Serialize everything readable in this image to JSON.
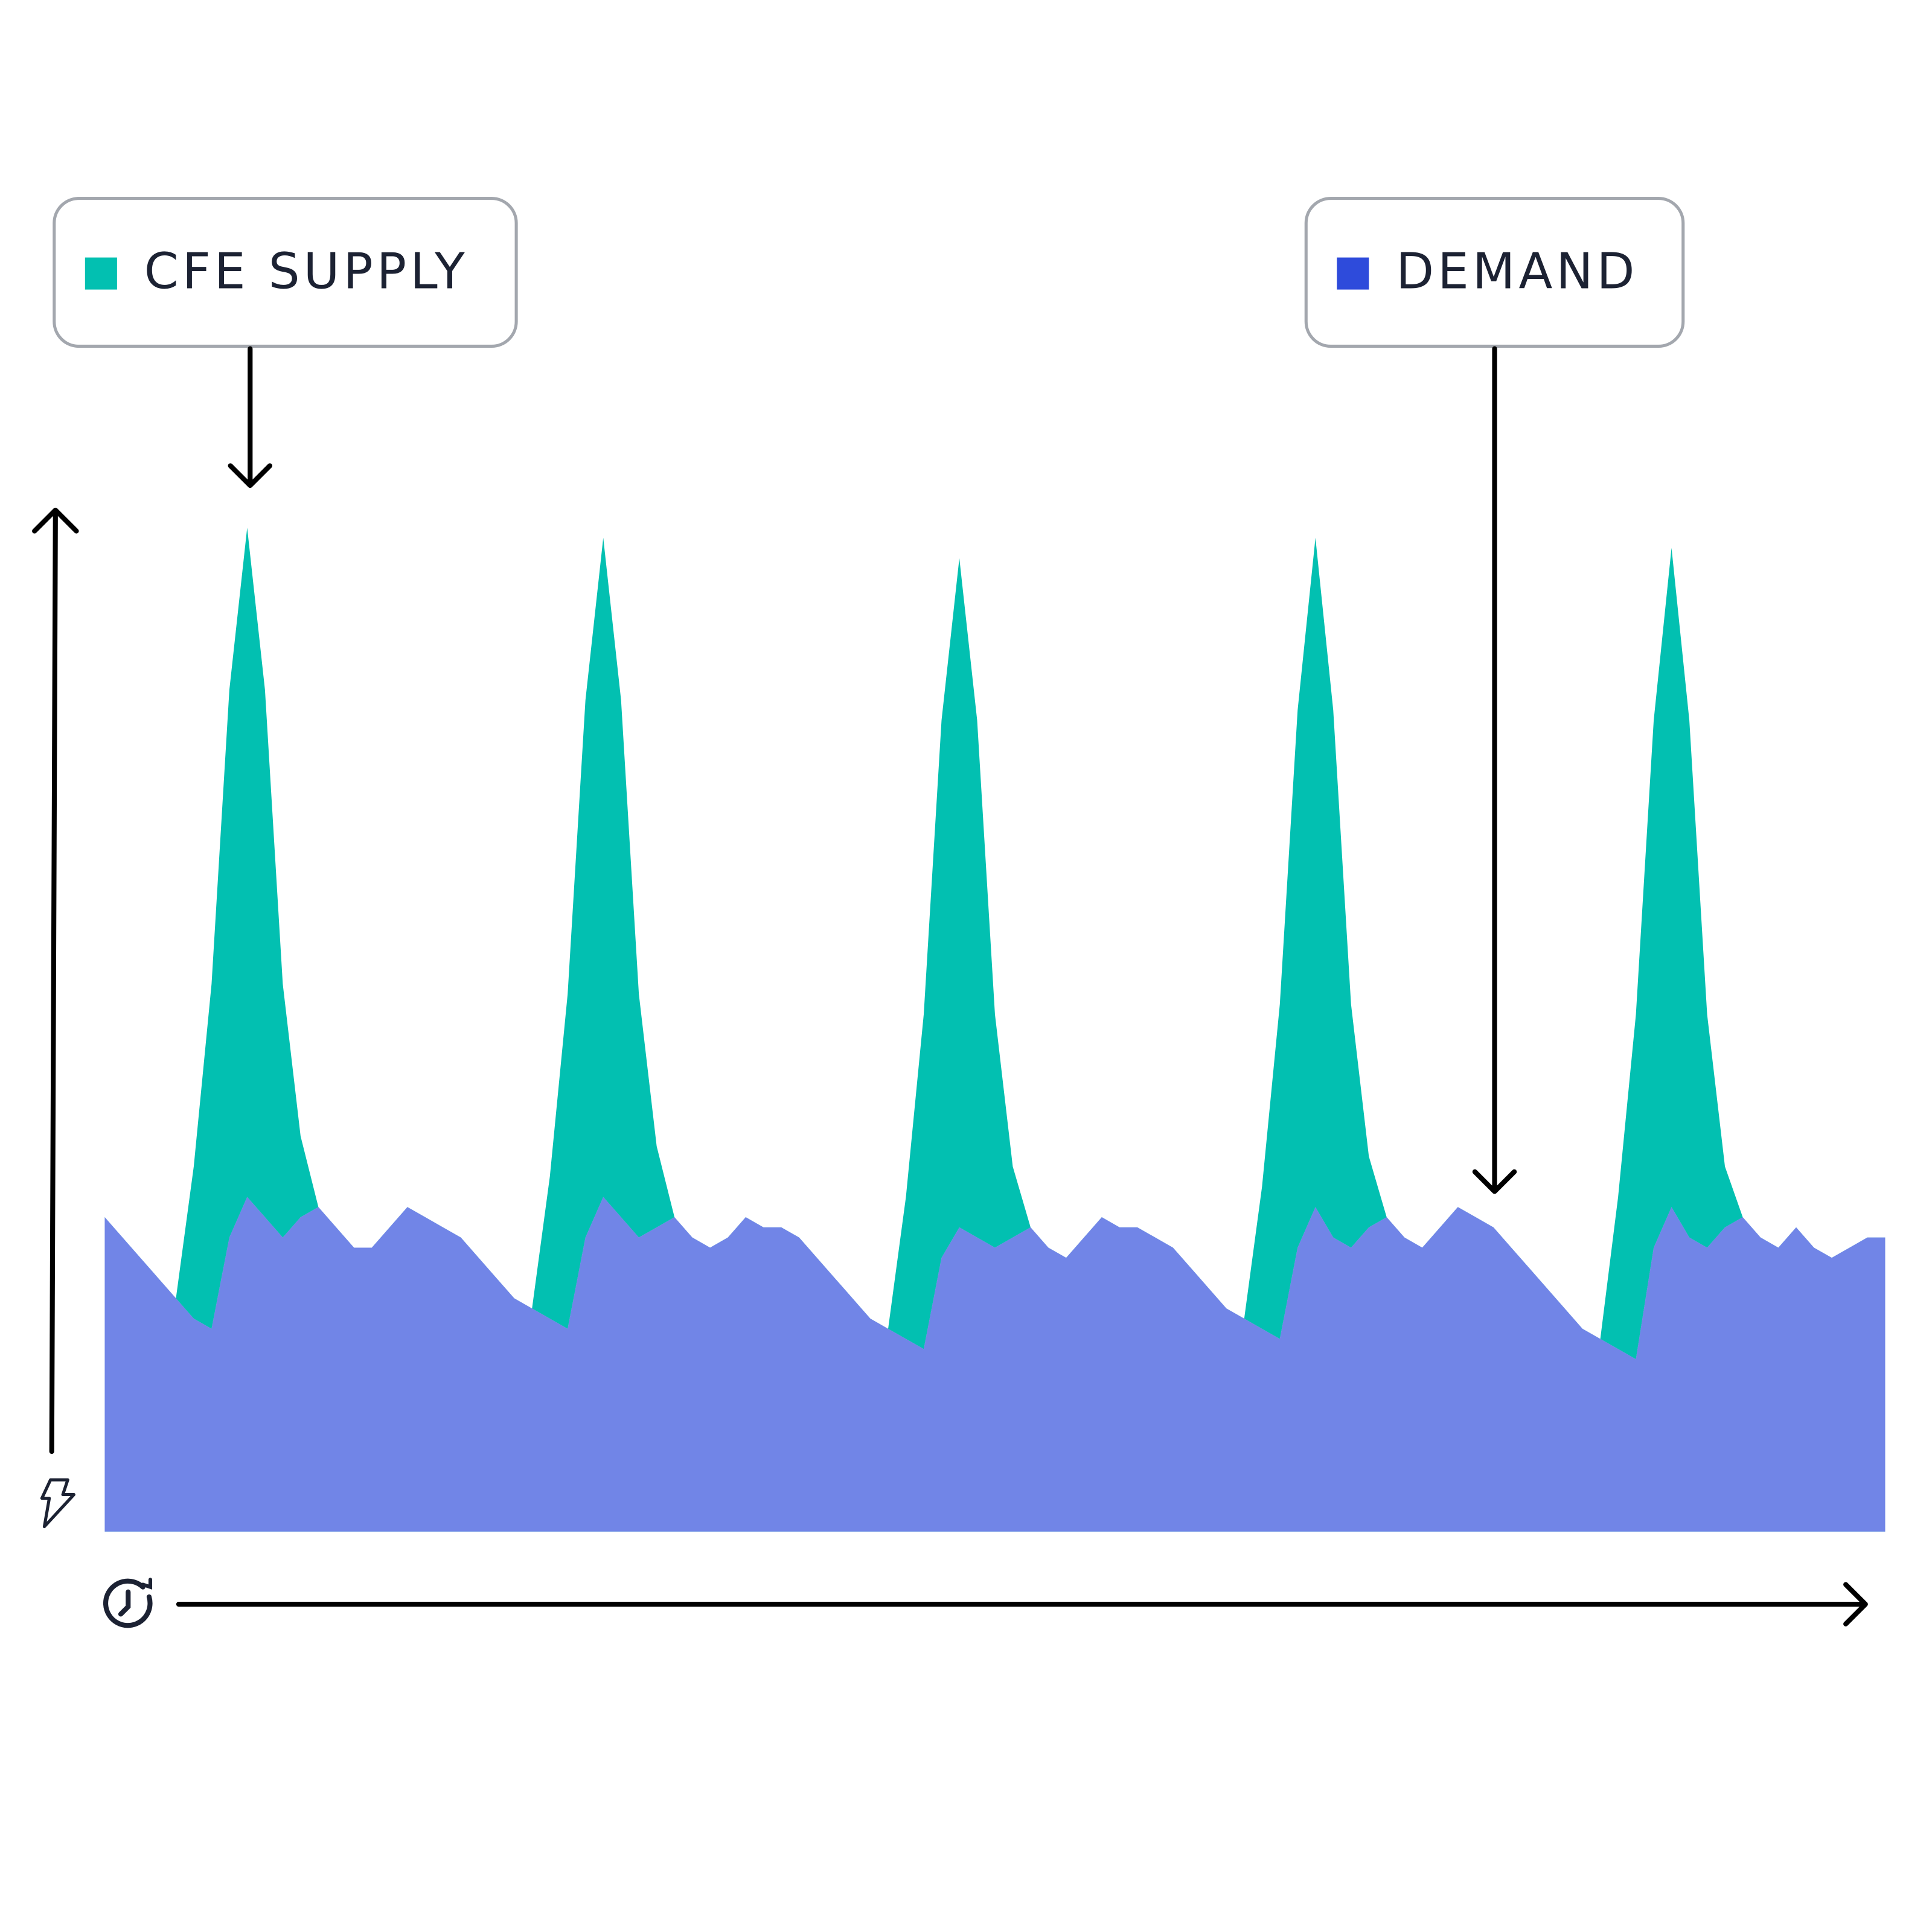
{
  "chart_data": {
    "type": "area",
    "ylim": [
      0,
      100
    ],
    "series": [
      {
        "name": "CFE SUPPLY",
        "color": "#02c0b1",
        "values": [
          31,
          29,
          27,
          25,
          23,
          36,
          54,
          83,
          99,
          83,
          54,
          39,
          32,
          30,
          28,
          28,
          30,
          32,
          31,
          30,
          29,
          27,
          25,
          23,
          22,
          35,
          53,
          82,
          98,
          82,
          53,
          38,
          31,
          29,
          28,
          29,
          31,
          30,
          30,
          29,
          27,
          25,
          23,
          21,
          20,
          33,
          51,
          80,
          96,
          80,
          51,
          36,
          30,
          28,
          27,
          29,
          31,
          30,
          30,
          29,
          28,
          26,
          24,
          22,
          21,
          34,
          52,
          81,
          98,
          81,
          52,
          37,
          31,
          29,
          28,
          30,
          32,
          31,
          30,
          28,
          26,
          24,
          22,
          20,
          19,
          33,
          51,
          80,
          97,
          80,
          51,
          36,
          31,
          29,
          28,
          30,
          28,
          27,
          28,
          29,
          29
        ]
      },
      {
        "name": "DEMAND",
        "color": "#2e4bdb",
        "values": [
          31,
          29,
          27,
          25,
          23,
          21,
          20,
          29,
          33,
          31,
          29,
          31,
          32,
          30,
          28,
          28,
          30,
          32,
          31,
          30,
          29,
          27,
          25,
          23,
          22,
          21,
          20,
          29,
          33,
          31,
          29,
          30,
          31,
          29,
          28,
          29,
          31,
          30,
          30,
          29,
          27,
          25,
          23,
          21,
          20,
          19,
          18,
          27,
          30,
          29,
          28,
          29,
          30,
          28,
          27,
          29,
          31,
          30,
          30,
          29,
          28,
          26,
          24,
          22,
          21,
          20,
          19,
          28,
          32,
          29,
          28,
          30,
          31,
          29,
          28,
          30,
          32,
          31,
          30,
          28,
          26,
          24,
          22,
          20,
          19,
          18,
          17,
          28,
          32,
          29,
          28,
          30,
          31,
          29,
          28,
          30,
          28,
          27,
          28,
          29,
          29
        ]
      }
    ]
  }
}
